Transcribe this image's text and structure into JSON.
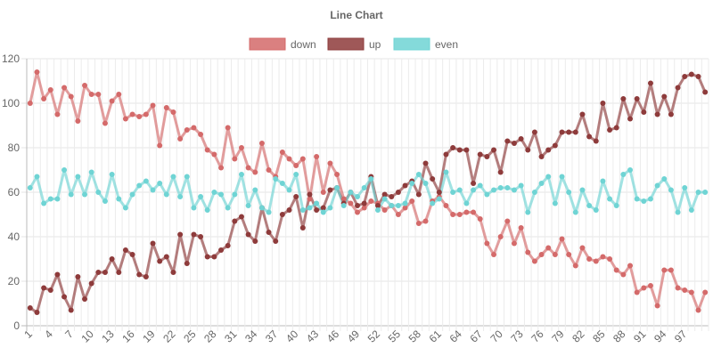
{
  "chart_data": {
    "type": "line",
    "title": "Line Chart",
    "xlabel": "",
    "ylabel": "",
    "ylim": [
      0,
      120
    ],
    "y_ticks": [
      0,
      20,
      40,
      60,
      80,
      100,
      120
    ],
    "x_tick_labels": [
      "1",
      "4",
      "7",
      "10",
      "13",
      "16",
      "19",
      "22",
      "25",
      "28",
      "31",
      "34",
      "37",
      "40",
      "43",
      "46",
      "49",
      "52",
      "55",
      "58",
      "61",
      "64",
      "67",
      "70",
      "73",
      "76",
      "79",
      "82",
      "85",
      "88",
      "91",
      "94",
      "97"
    ],
    "grid": true,
    "legend_position": "top",
    "x": [
      1,
      2,
      3,
      4,
      5,
      6,
      7,
      8,
      9,
      10,
      11,
      12,
      13,
      14,
      15,
      16,
      17,
      18,
      19,
      20,
      21,
      22,
      23,
      24,
      25,
      26,
      27,
      28,
      29,
      30,
      31,
      32,
      33,
      34,
      35,
      36,
      37,
      38,
      39,
      40,
      41,
      42,
      43,
      44,
      45,
      46,
      47,
      48,
      49,
      50,
      51,
      52,
      53,
      54,
      55,
      56,
      57,
      58,
      59,
      60,
      61,
      62,
      63,
      64,
      65,
      66,
      67,
      68,
      69,
      70,
      71,
      72,
      73,
      74,
      75,
      76,
      77,
      78,
      79,
      80,
      81,
      82,
      83,
      84,
      85,
      86,
      87,
      88,
      89,
      90,
      91,
      92,
      93,
      94,
      95,
      96,
      97,
      98,
      99,
      100
    ],
    "series": [
      {
        "name": "down",
        "color": "#d46a6a",
        "values": [
          100,
          114,
          102,
          106,
          95,
          107,
          103,
          92,
          108,
          104,
          104,
          91,
          101,
          104,
          93,
          95,
          94,
          95,
          99,
          81,
          98,
          96,
          84,
          88,
          89,
          86,
          79,
          77,
          71,
          89,
          75,
          80,
          71,
          69,
          82,
          70,
          67,
          78,
          75,
          72,
          75,
          57,
          76,
          60,
          73,
          68,
          57,
          55,
          51,
          53,
          56,
          55,
          52,
          54,
          50,
          53,
          56,
          46,
          47,
          56,
          58,
          54,
          50,
          50,
          51,
          51,
          48,
          37,
          32,
          40,
          47,
          37,
          44,
          33,
          29,
          32,
          35,
          32,
          39,
          32,
          27,
          35,
          30,
          29,
          31,
          30,
          25,
          23,
          27,
          15,
          17,
          18,
          9,
          25,
          25,
          17,
          16,
          15,
          7,
          15
        ]
      },
      {
        "name": "up",
        "color": "#8e3b3b",
        "values": [
          8,
          6,
          17,
          16,
          23,
          13,
          7,
          22,
          12,
          19,
          24,
          24,
          30,
          24,
          34,
          32,
          23,
          22,
          37,
          29,
          31,
          24,
          41,
          28,
          41,
          40,
          31,
          31,
          34,
          36,
          47,
          49,
          41,
          38,
          53,
          42,
          38,
          50,
          52,
          58,
          44,
          59,
          52,
          53,
          61,
          62,
          55,
          60,
          54,
          55,
          67,
          54,
          59,
          58,
          60,
          63,
          65,
          59,
          73,
          66,
          60,
          77,
          80,
          79,
          79,
          64,
          77,
          76,
          79,
          69,
          83,
          82,
          84,
          79,
          87,
          76,
          79,
          81,
          87,
          87,
          87,
          95,
          85,
          83,
          100,
          88,
          89,
          102,
          93,
          102,
          96,
          109,
          95,
          103,
          95,
          107,
          112,
          113,
          112,
          105
        ]
      },
      {
        "name": "even",
        "color": "#6fd4d4",
        "values": [
          62,
          67,
          55,
          57,
          57,
          70,
          59,
          67,
          59,
          69,
          60,
          56,
          68,
          57,
          53,
          59,
          63,
          65,
          61,
          64,
          59,
          67,
          58,
          67,
          53,
          58,
          52,
          60,
          59,
          53,
          59,
          68,
          54,
          61,
          53,
          51,
          66,
          64,
          61,
          68,
          52,
          53,
          55,
          51,
          53,
          62,
          54,
          60,
          58,
          62,
          66,
          52,
          57,
          54,
          54,
          55,
          64,
          68,
          64,
          55,
          57,
          69,
          60,
          61,
          55,
          61,
          63,
          59,
          61,
          62,
          62,
          61,
          63,
          51,
          60,
          64,
          67,
          55,
          67,
          60,
          51,
          61,
          54,
          52,
          65,
          57,
          54,
          68,
          70,
          57,
          56,
          57,
          63,
          66,
          61,
          51,
          62,
          52,
          60,
          60
        ]
      }
    ]
  }
}
